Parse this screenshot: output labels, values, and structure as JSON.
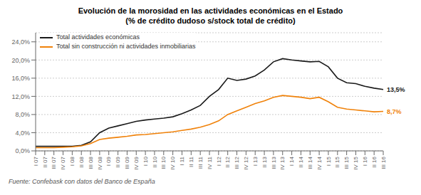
{
  "chart_data": {
    "type": "line",
    "title": "Evolución de la morosidad en las actividades económicas en el Estado",
    "subtitle": "(% de crédito dudoso s/stock total de crédito)",
    "categories": [
      "I 07",
      "II 07",
      "III 07",
      "IV 07",
      "I 08",
      "II 08",
      "III 08",
      "IV 08",
      "I 09",
      "II 09",
      "III 09",
      "IV 09",
      "I 10",
      "II 10",
      "III 10",
      "IV 10",
      "I 11",
      "II 11",
      "III 11",
      "IV 11",
      "I 12",
      "II 12",
      "III 12",
      "IV 12",
      "I 13",
      "II 13",
      "III 13",
      "IV 13",
      "I 14",
      "II 14",
      "III 14",
      "IV 14",
      "I 15",
      "II 15",
      "III 15",
      "IV 15",
      "I 16",
      "II 16",
      "III 16"
    ],
    "series": [
      {
        "name": "Total actividades económicas",
        "color": "#1a1a1a",
        "values": [
          0.01,
          0.01,
          0.01,
          0.01,
          0.01,
          0.012,
          0.02,
          0.04,
          0.05,
          0.055,
          0.06,
          0.065,
          0.068,
          0.07,
          0.072,
          0.075,
          0.082,
          0.09,
          0.1,
          0.12,
          0.135,
          0.16,
          0.155,
          0.158,
          0.165,
          0.178,
          0.196,
          0.203,
          0.2,
          0.198,
          0.196,
          0.197,
          0.185,
          0.16,
          0.15,
          0.148,
          0.142,
          0.138,
          0.135
        ]
      },
      {
        "name": "Total sin construcción ni actividades inmobiliarias",
        "color": "#f0820a",
        "values": [
          0.007,
          0.007,
          0.007,
          0.008,
          0.009,
          0.011,
          0.016,
          0.025,
          0.028,
          0.03,
          0.032,
          0.035,
          0.036,
          0.038,
          0.04,
          0.042,
          0.045,
          0.048,
          0.052,
          0.058,
          0.066,
          0.08,
          0.088,
          0.096,
          0.104,
          0.11,
          0.118,
          0.122,
          0.12,
          0.118,
          0.115,
          0.118,
          0.108,
          0.096,
          0.092,
          0.09,
          0.088,
          0.086,
          0.087
        ]
      }
    ],
    "ylim": [
      0.0,
      0.26
    ],
    "yticks": [
      {
        "value": 0.0,
        "label": "0,0%"
      },
      {
        "value": 0.04,
        "label": "4,0%"
      },
      {
        "value": 0.08,
        "label": "8,0%"
      },
      {
        "value": 0.12,
        "label": "12,0%"
      },
      {
        "value": 0.16,
        "label": "16,0%"
      },
      {
        "value": 0.2,
        "label": "20,0%"
      },
      {
        "value": 0.24,
        "label": "24,0%"
      }
    ],
    "grid": true,
    "legend": "upper left",
    "annotations": [
      {
        "text": "13,5%",
        "x": "III 16",
        "y": 0.135,
        "color": "#1a1a1a"
      },
      {
        "text": "8,7%",
        "x": "III 16",
        "y": 0.087,
        "color": "#f0820a"
      },
      {
        "text": "Fuente: Confebask con datos del Banco de España"
      }
    ]
  }
}
